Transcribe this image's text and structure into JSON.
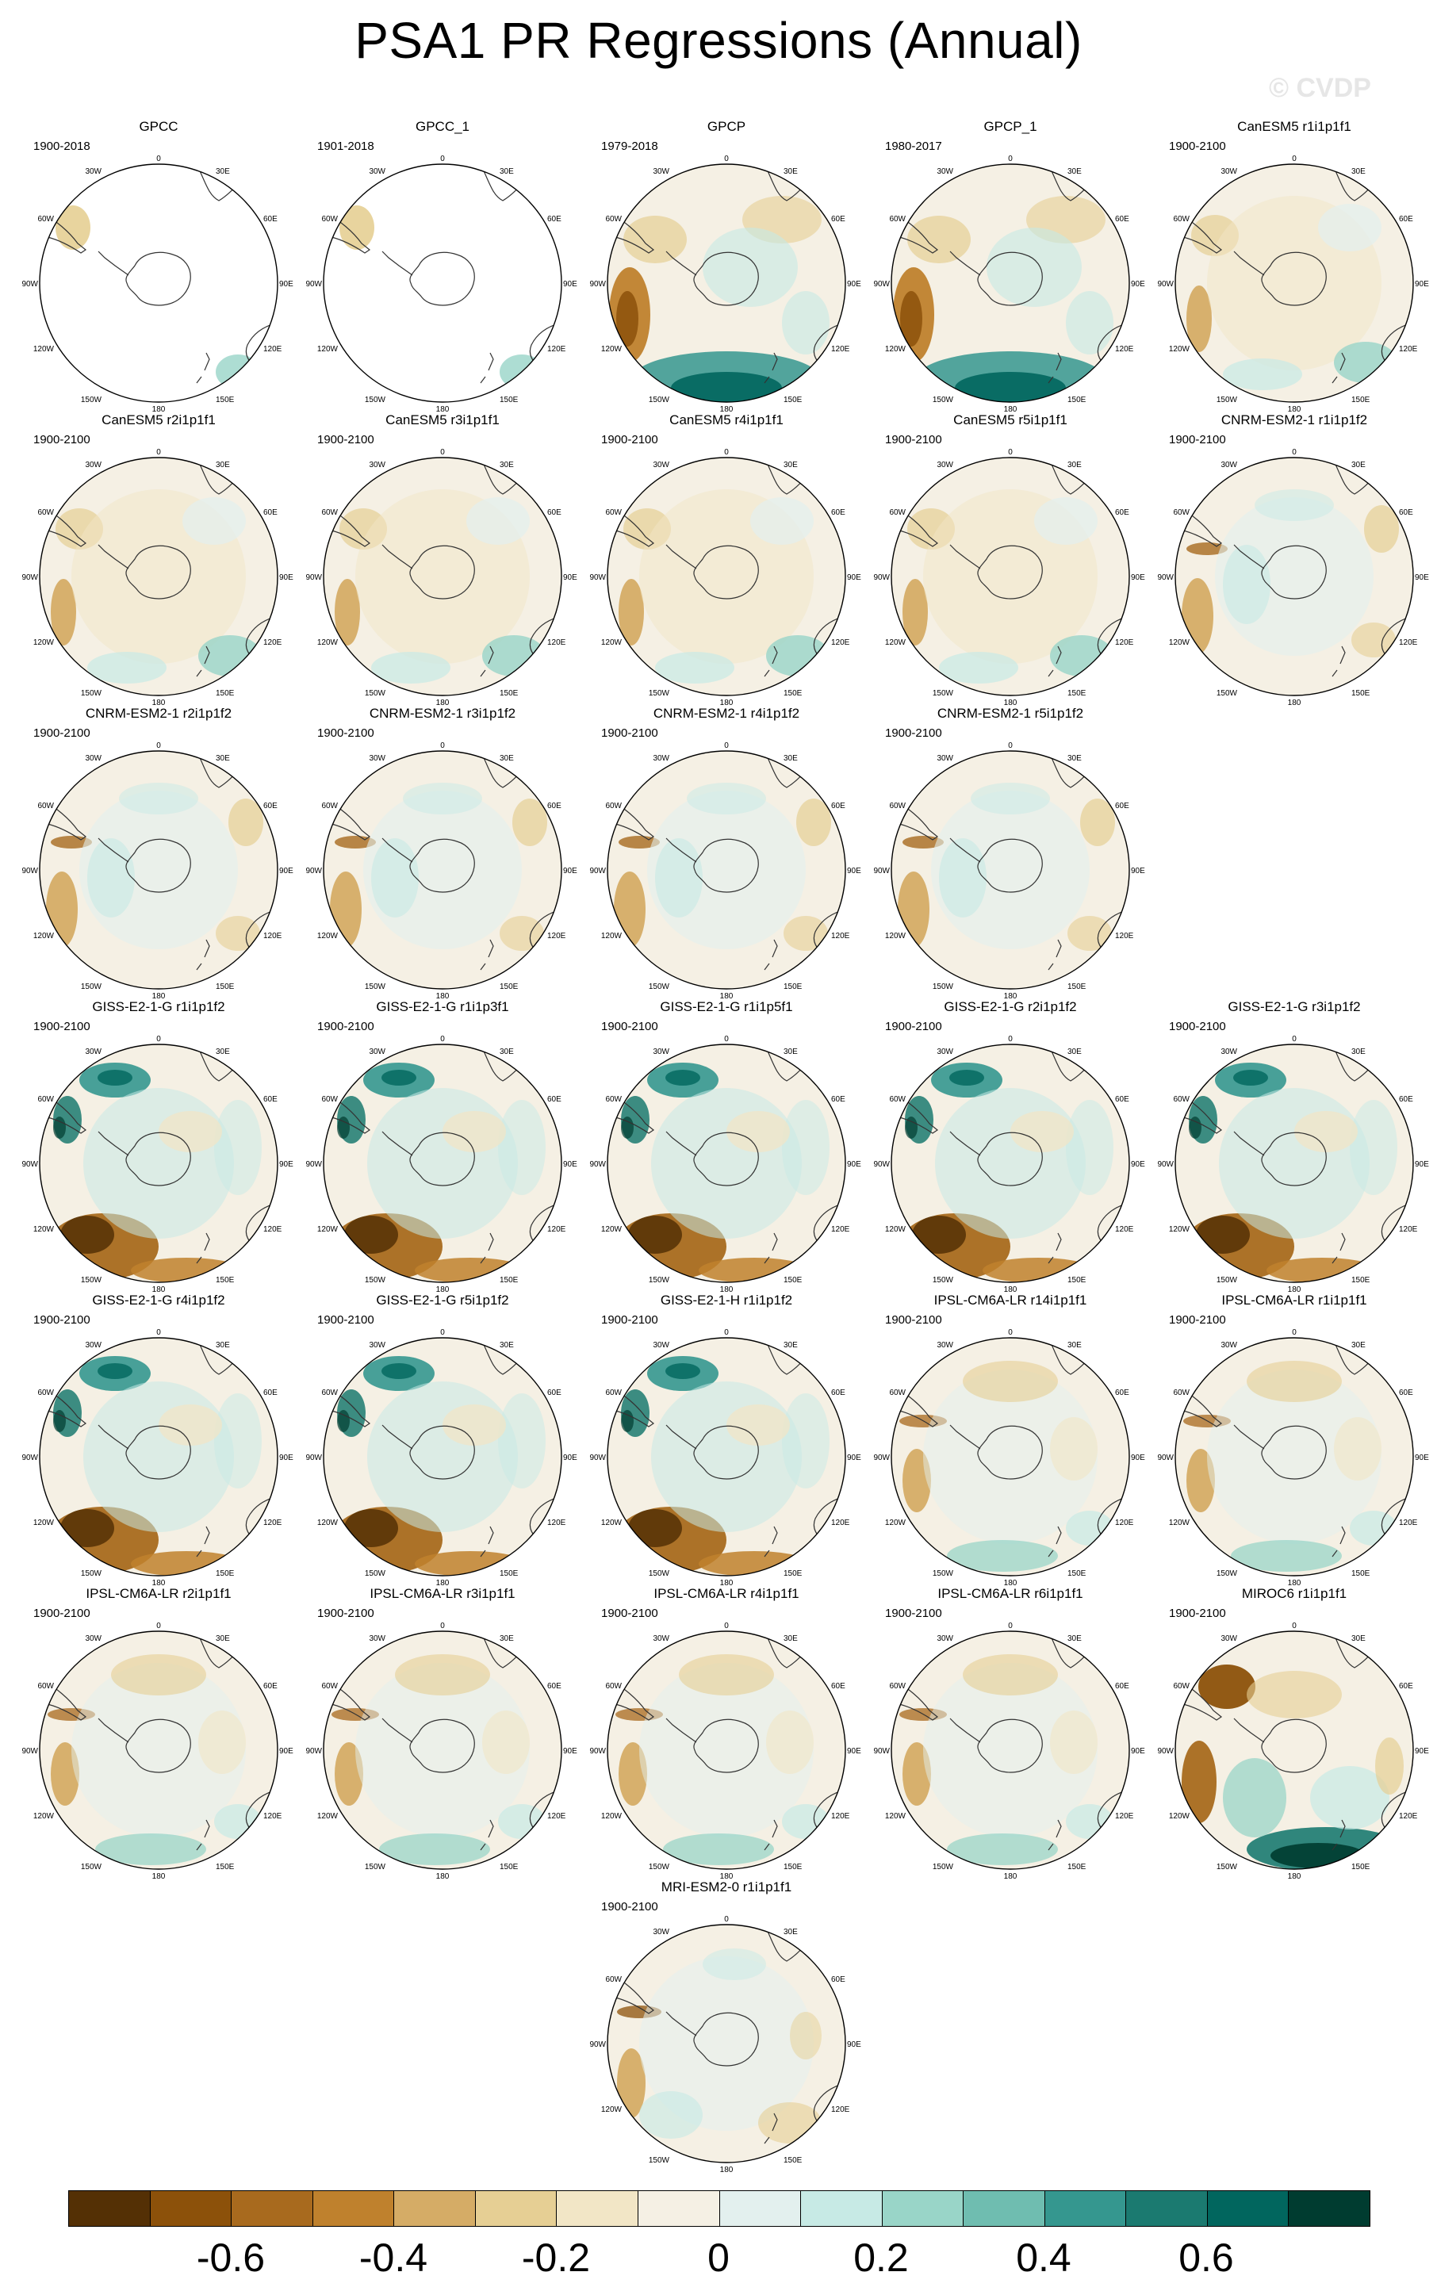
{
  "title": "PSA1 PR Regressions (Annual)",
  "watermark": "© CVDP",
  "map_labels": {
    "top": "0",
    "top_left": "30W",
    "top_right": "30E",
    "left_upper": "60W",
    "right_upper": "60E",
    "left_mid": "90W",
    "right_mid": "90E",
    "left_lower": "120W",
    "right_lower": "120E",
    "bottom_left": "150W",
    "bottom": "180",
    "bottom_right": "150E"
  },
  "panels": [
    {
      "name": "GPCC",
      "years": "1900-2018",
      "style": "obs_sparse"
    },
    {
      "name": "GPCC_1",
      "years": "1901-2018",
      "style": "obs_sparse"
    },
    {
      "name": "GPCP",
      "years": "1979-2018",
      "style": "obs_full"
    },
    {
      "name": "GPCP_1",
      "years": "1980-2017",
      "style": "obs_full"
    },
    {
      "name": "CanESM5 r1i1p1f1",
      "years": "1900-2100",
      "style": "can"
    },
    {
      "name": "CanESM5 r2i1p1f1",
      "years": "1900-2100",
      "style": "can"
    },
    {
      "name": "CanESM5 r3i1p1f1",
      "years": "1900-2100",
      "style": "can"
    },
    {
      "name": "CanESM5 r4i1p1f1",
      "years": "1900-2100",
      "style": "can"
    },
    {
      "name": "CanESM5 r5i1p1f1",
      "years": "1900-2100",
      "style": "can"
    },
    {
      "name": "CNRM-ESM2-1 r1i1p1f2",
      "years": "1900-2100",
      "style": "cnrm"
    },
    {
      "name": "CNRM-ESM2-1 r2i1p1f2",
      "years": "1900-2100",
      "style": "cnrm"
    },
    {
      "name": "CNRM-ESM2-1 r3i1p1f2",
      "years": "1900-2100",
      "style": "cnrm"
    },
    {
      "name": "CNRM-ESM2-1 r4i1p1f2",
      "years": "1900-2100",
      "style": "cnrm"
    },
    {
      "name": "CNRM-ESM2-1 r5i1p1f2",
      "years": "1900-2100",
      "style": "cnrm"
    },
    {
      "name": "GISS-E2-1-G r1i1p1f2",
      "years": "1900-2100",
      "style": "giss"
    },
    {
      "name": "GISS-E2-1-G r1i1p3f1",
      "years": "1900-2100",
      "style": "giss"
    },
    {
      "name": "GISS-E2-1-G r1i1p5f1",
      "years": "1900-2100",
      "style": "giss"
    },
    {
      "name": "GISS-E2-1-G r2i1p1f2",
      "years": "1900-2100",
      "style": "giss"
    },
    {
      "name": "GISS-E2-1-G r3i1p1f2",
      "years": "1900-2100",
      "style": "giss"
    },
    {
      "name": "GISS-E2-1-G r4i1p1f2",
      "years": "1900-2100",
      "style": "giss"
    },
    {
      "name": "GISS-E2-1-G r5i1p1f2",
      "years": "1900-2100",
      "style": "giss"
    },
    {
      "name": "GISS-E2-1-H r1i1p1f2",
      "years": "1900-2100",
      "style": "giss"
    },
    {
      "name": "IPSL-CM6A-LR r14i1p1f1",
      "years": "1900-2100",
      "style": "ipsl"
    },
    {
      "name": "IPSL-CM6A-LR r1i1p1f1",
      "years": "1900-2100",
      "style": "ipsl"
    },
    {
      "name": "IPSL-CM6A-LR r2i1p1f1",
      "years": "1900-2100",
      "style": "ipsl"
    },
    {
      "name": "IPSL-CM6A-LR r3i1p1f1",
      "years": "1900-2100",
      "style": "ipsl"
    },
    {
      "name": "IPSL-CM6A-LR r4i1p1f1",
      "years": "1900-2100",
      "style": "ipsl"
    },
    {
      "name": "IPSL-CM6A-LR r6i1p1f1",
      "years": "1900-2100",
      "style": "ipsl"
    },
    {
      "name": "MIROC6 r1i1p1f1",
      "years": "1900-2100",
      "style": "miroc"
    },
    {
      "name": "MRI-ESM2-0 r1i1p1f1",
      "years": "1900-2100",
      "style": "mri"
    }
  ],
  "colorbar": {
    "colors": [
      "#543005",
      "#8c510a",
      "#a86a1e",
      "#bf812d",
      "#d5ac66",
      "#e6cf94",
      "#f2e6c6",
      "#f5f0e4",
      "#e3f0ee",
      "#c7eae5",
      "#99d5c8",
      "#6fbdb0",
      "#35978f",
      "#1b7a70",
      "#01665e",
      "#003c30"
    ],
    "ticks": [
      "-0.6",
      "-0.4",
      "-0.2",
      "0",
      "0.2",
      "0.4",
      "0.6"
    ]
  }
}
